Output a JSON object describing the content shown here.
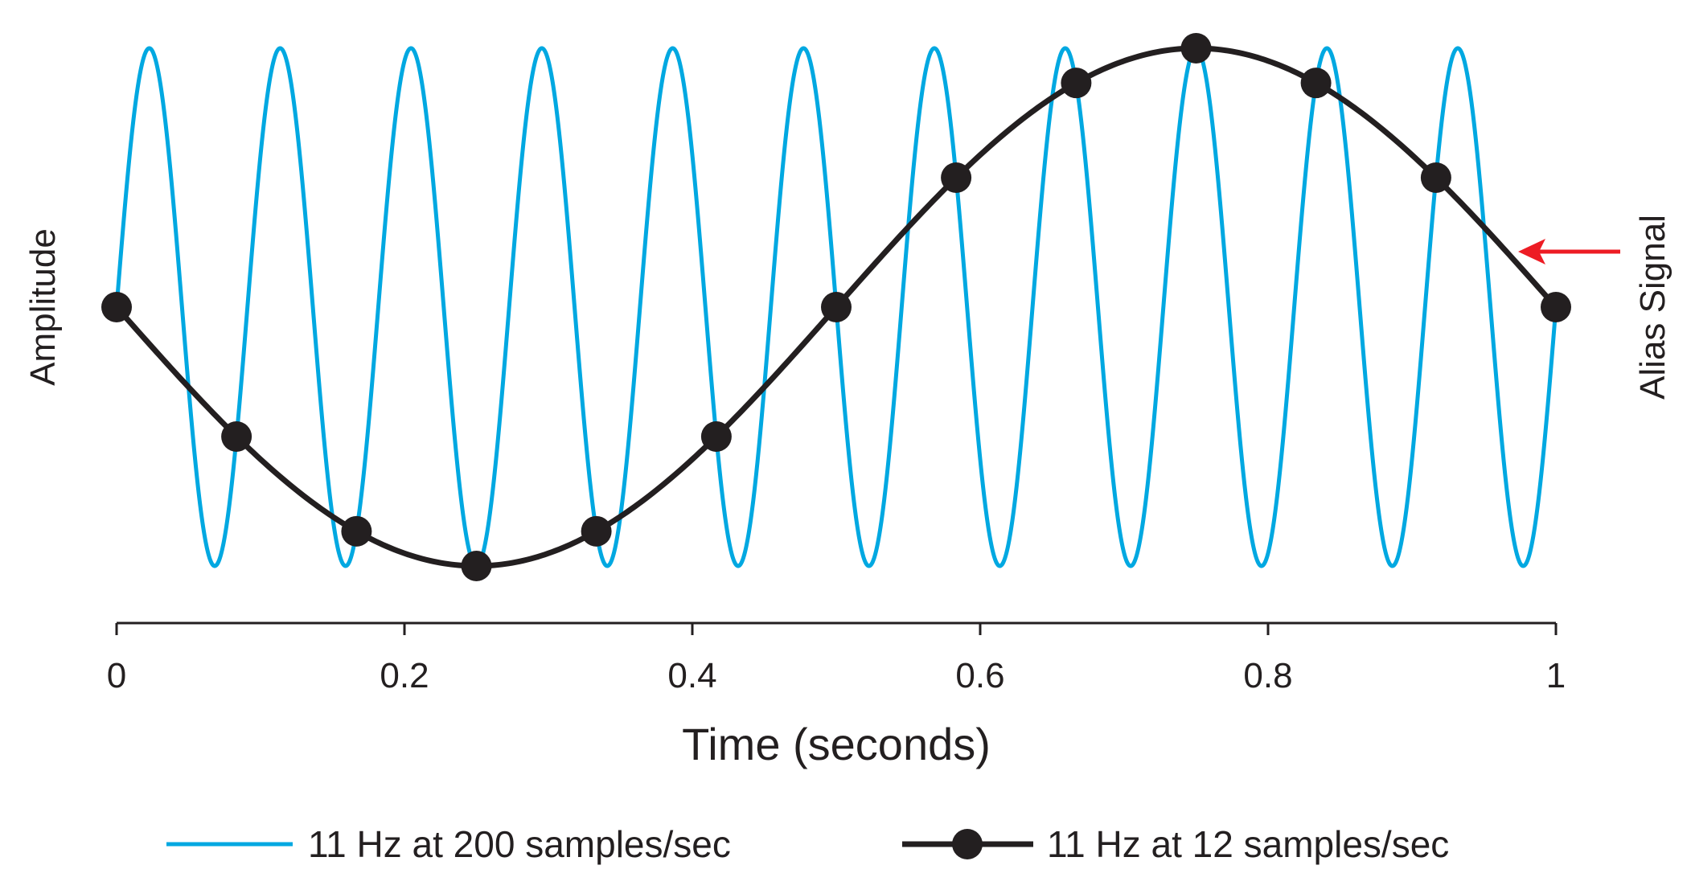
{
  "chart_data": {
    "type": "line",
    "title": "",
    "xlabel": "Time (seconds)",
    "ylabel": "Amplitude",
    "xlim": [
      0,
      1
    ],
    "ylim": [
      -1,
      1
    ],
    "x_ticks": [
      0,
      0.2,
      0.4,
      0.6,
      0.8,
      1
    ],
    "x_tick_labels": [
      "0",
      "0.2",
      "0.4",
      "0.6",
      "0.8",
      "1"
    ],
    "grid": false,
    "legend_position": "bottom",
    "series": [
      {
        "name": "11 Hz at 200 samples/sec",
        "color": "#00a8e1",
        "frequency_hz": 11,
        "sample_rate": 200,
        "marker": "none"
      },
      {
        "name": "11 Hz at 12 samples/sec",
        "color": "#231f20",
        "frequency_hz": 11,
        "sample_rate": 12,
        "marker": "circle",
        "x": [
          0,
          0.0833,
          0.1667,
          0.25,
          0.3333,
          0.4167,
          0.5,
          0.5833,
          0.6667,
          0.75,
          0.8333,
          0.9167,
          1
        ],
        "values": [
          0,
          -0.5,
          -0.866,
          -1,
          -0.866,
          -0.5,
          0,
          0.5,
          0.866,
          1,
          0.866,
          0.5,
          0
        ]
      }
    ],
    "annotations": [
      {
        "text": "Alias Signal",
        "color": "#ed1c24",
        "points_to_x": 0.97
      }
    ]
  }
}
